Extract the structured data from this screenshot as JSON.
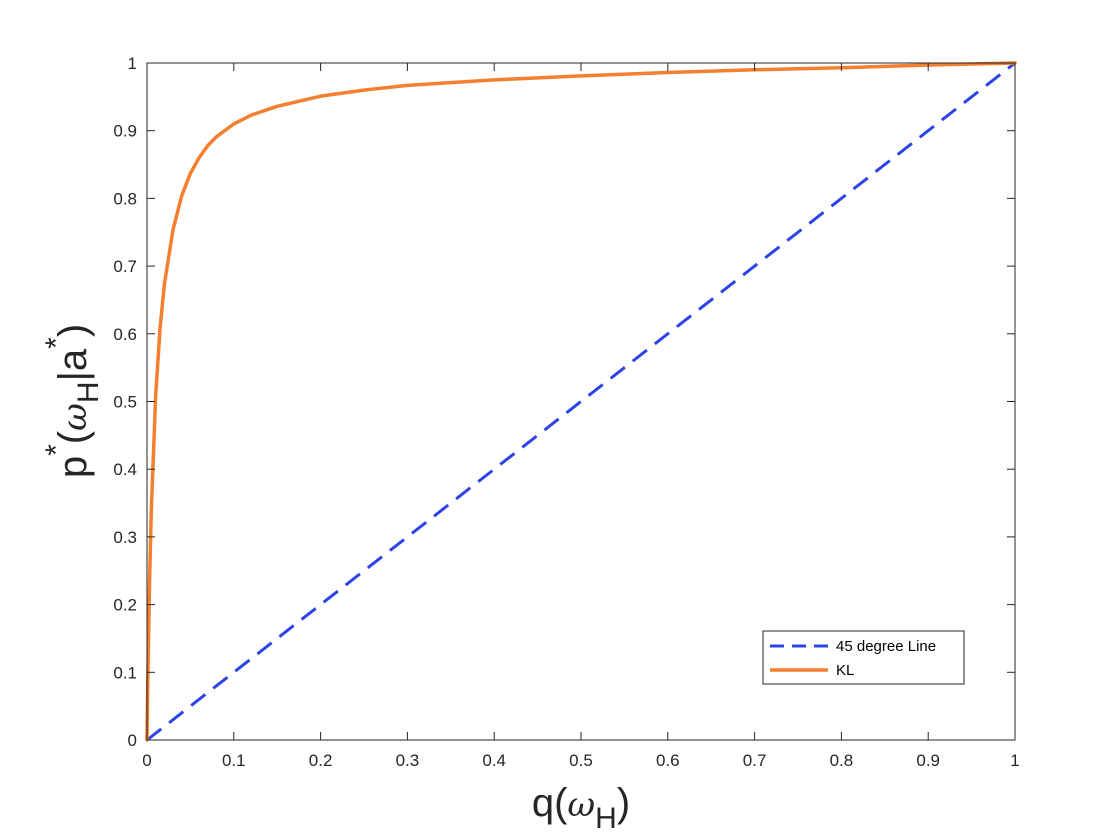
{
  "chart_data": {
    "type": "line",
    "xlabel": "q(ωH)",
    "ylabel": "p*(ωH|a*)",
    "xlim": [
      0,
      1
    ],
    "ylim": [
      0,
      1
    ],
    "xticks": [
      "0",
      "0.1",
      "0.2",
      "0.3",
      "0.4",
      "0.5",
      "0.6",
      "0.7",
      "0.8",
      "0.9",
      "1"
    ],
    "yticks": [
      "0",
      "0.1",
      "0.2",
      "0.3",
      "0.4",
      "0.5",
      "0.6",
      "0.7",
      "0.8",
      "0.9",
      "1"
    ],
    "grid": false,
    "box": true,
    "legend_position": "bottom-right",
    "series": [
      {
        "name": "45 degree Line",
        "color": "#2c44e6",
        "style": "dashed",
        "x": [
          0,
          1
        ],
        "y": [
          0,
          1
        ]
      },
      {
        "name": "KL",
        "color": "#f47f2f",
        "style": "solid",
        "x": [
          0,
          0.001,
          0.003,
          0.005,
          0.01,
          0.015,
          0.02,
          0.03,
          0.04,
          0.05,
          0.06,
          0.07,
          0.08,
          0.1,
          0.12,
          0.15,
          0.2,
          0.25,
          0.3,
          0.4,
          0.5,
          0.6,
          0.7,
          0.8,
          0.9,
          1
        ],
        "y": [
          0,
          0.094,
          0.237,
          0.341,
          0.509,
          0.607,
          0.673,
          0.754,
          0.804,
          0.837,
          0.86,
          0.878,
          0.891,
          0.91,
          0.923,
          0.936,
          0.951,
          0.96,
          0.967,
          0.975,
          0.981,
          0.986,
          0.99,
          0.993,
          0.997,
          1
        ]
      }
    ]
  }
}
